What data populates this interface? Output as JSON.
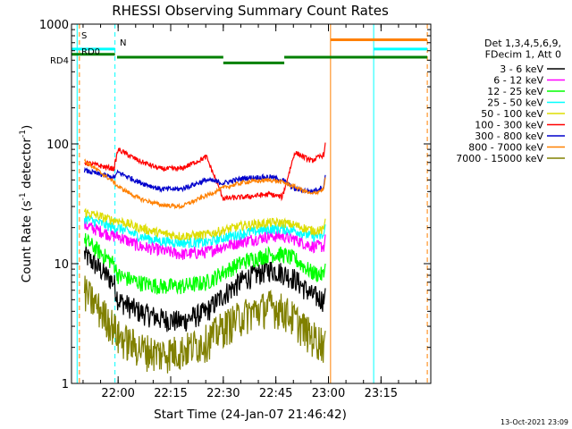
{
  "chart_data": {
    "type": "line",
    "title": "RHESSI Observing Summary Count Rates",
    "xlabel": "Start Time (24-Jan-07 21:46:42)",
    "ylabel_main": "Count Rate (s",
    "ylabel_sup1": "-1",
    "ylabel_mid": " detector",
    "ylabel_sup2": "-1",
    "ylabel_end": ")",
    "yscale": "log",
    "ylim": [
      1,
      1000
    ],
    "xlim_minutes": [
      21.7783,
      23.4866
    ],
    "x_ticks": [
      {
        "label": "22:00",
        "t": 22.0
      },
      {
        "label": "22:15",
        "t": 22.25
      },
      {
        "label": "22:30",
        "t": 22.5
      },
      {
        "label": "22:45",
        "t": 22.75
      },
      {
        "label": "23:00",
        "t": 23.0
      },
      {
        "label": "23:15",
        "t": 23.25
      }
    ],
    "y_ticks": [
      {
        "label": "1",
        "v": 1
      },
      {
        "label": "10",
        "v": 10
      },
      {
        "label": "100",
        "v": 100
      },
      {
        "label": "1000",
        "v": 1000
      }
    ],
    "legend_header": [
      "Det 1,3,4,5,6,9,",
      "FDecim 1, Att 0"
    ],
    "legend_position": "right",
    "series": [
      {
        "name": "3 - 6 keV",
        "color": "#000000",
        "x": [
          21.84,
          21.98,
          22.0,
          22.1,
          22.2,
          22.3,
          22.42,
          22.5,
          22.6,
          22.72,
          22.78,
          22.84,
          22.92,
          22.98
        ],
        "y": [
          12,
          7,
          5,
          4,
          3.5,
          3.3,
          4,
          5.5,
          7.5,
          9,
          8.5,
          7.5,
          5.5,
          5
        ]
      },
      {
        "name": "6 - 12 keV",
        "color": "#ff00ff",
        "x": [
          21.84,
          21.98,
          22.0,
          22.1,
          22.2,
          22.3,
          22.42,
          22.5,
          22.6,
          22.72,
          22.78,
          22.84,
          22.92,
          22.98
        ],
        "y": [
          21,
          17,
          17,
          14,
          13,
          12,
          12.5,
          14,
          15.5,
          17,
          17,
          16,
          14,
          14
        ]
      },
      {
        "name": "12 - 25 keV",
        "color": "#00ff00",
        "x": [
          21.84,
          21.98,
          22.0,
          22.1,
          22.2,
          22.3,
          22.42,
          22.5,
          22.6,
          22.72,
          22.78,
          22.84,
          22.92,
          22.98
        ],
        "y": [
          16,
          10,
          8,
          7,
          6.5,
          6.5,
          7,
          8.5,
          10.5,
          12,
          12,
          11,
          8.5,
          8
        ]
      },
      {
        "name": "25 - 50 keV",
        "color": "#00ffff",
        "x": [
          21.84,
          21.98,
          22.0,
          22.1,
          22.2,
          22.3,
          22.42,
          22.5,
          22.6,
          22.72,
          22.78,
          22.84,
          22.92,
          22.98
        ],
        "y": [
          24,
          20,
          20,
          17,
          15.5,
          15,
          15,
          16.5,
          18,
          19.5,
          19.5,
          19,
          17,
          17
        ]
      },
      {
        "name": "50 - 100 keV",
        "color": "#dddd00",
        "x": [
          21.84,
          21.98,
          22.0,
          22.1,
          22.2,
          22.3,
          22.42,
          22.5,
          22.6,
          22.72,
          22.78,
          22.84,
          22.92,
          22.98
        ],
        "y": [
          27,
          23,
          23,
          20,
          18,
          17,
          17.5,
          19,
          21,
          22,
          22,
          21,
          19,
          19
        ]
      },
      {
        "name": "100 - 300 keV",
        "color": "#ff0000",
        "x": [
          21.84,
          21.98,
          22.0,
          22.1,
          22.2,
          22.3,
          22.42,
          22.5,
          22.6,
          22.72,
          22.78,
          22.84,
          22.92,
          22.98
        ],
        "y": [
          70,
          62,
          90,
          72,
          62,
          62,
          78,
          35,
          36,
          38,
          36,
          85,
          72,
          82
        ]
      },
      {
        "name": "300 - 800 keV",
        "color": "#0000cc",
        "x": [
          21.84,
          21.98,
          22.0,
          22.1,
          22.2,
          22.3,
          22.42,
          22.5,
          22.6,
          22.72,
          22.78,
          22.84,
          22.92,
          22.98
        ],
        "y": [
          60,
          52,
          58,
          48,
          42,
          42,
          50,
          47,
          52,
          53,
          50,
          42,
          40,
          44
        ]
      },
      {
        "name": "800 - 7000 keV",
        "color": "#ff8000",
        "x": [
          21.84,
          21.98,
          22.0,
          22.1,
          22.2,
          22.3,
          22.42,
          22.5,
          22.6,
          22.72,
          22.78,
          22.84,
          22.92,
          22.98
        ],
        "y": [
          72,
          48,
          44,
          35,
          31,
          30,
          37,
          43,
          48,
          50,
          48,
          44,
          38,
          42
        ]
      },
      {
        "name": "7000 - 15000 keV",
        "color": "#808000",
        "x": [
          21.84,
          21.98,
          22.0,
          22.1,
          22.2,
          22.3,
          22.42,
          22.5,
          22.6,
          22.72,
          22.78,
          22.84,
          22.92,
          22.98
        ],
        "y": [
          6,
          3,
          2.5,
          2,
          1.8,
          1.9,
          2.3,
          3,
          3.8,
          4.5,
          4.2,
          3.5,
          2.5,
          2.2
        ]
      }
    ],
    "flags": [
      {
        "label": "S",
        "color": "#ff8000",
        "x_start": 21.78,
        "x_end": 21.98,
        "y": 680
      },
      {
        "label": "N",
        "color": "#00ffff",
        "x_start": 21.98,
        "x_end": 23.47,
        "y": 620
      },
      {
        "label": "RD0",
        "color": "#008000",
        "x_start": 21.78,
        "x_end": 23.47,
        "y": 530
      },
      {
        "label": "RD4",
        "color": "#008000",
        "x_start": 21.78,
        "x_end": 23.47,
        "y": 530
      }
    ],
    "timestamp": "13-Oct-2021 23:09"
  }
}
